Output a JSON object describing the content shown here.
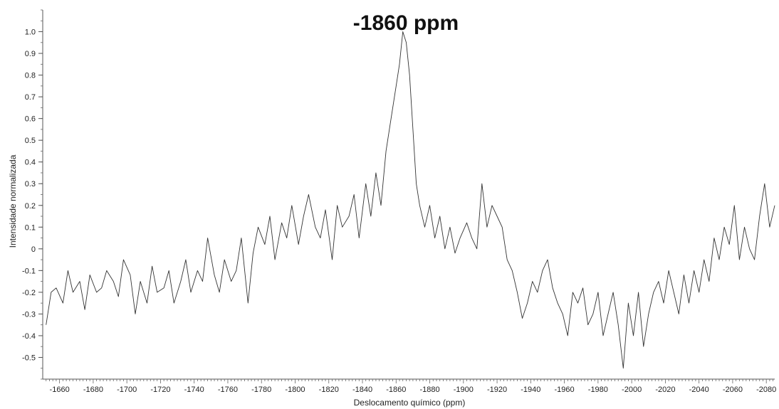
{
  "chart_data": {
    "type": "line",
    "title": "-1860 ppm",
    "xlabel": "Deslocamento químico (ppm)",
    "ylabel": "Intensidade normalizada",
    "xlim": [
      -1650,
      -2085
    ],
    "ylim": [
      -0.6,
      1.1
    ],
    "x_reversed_direction": true,
    "grid": false,
    "x_ticks": [
      -1660,
      -1680,
      -1700,
      -1720,
      -1740,
      -1760,
      -1780,
      -1800,
      -1820,
      -1840,
      -1860,
      -1880,
      -1900,
      -1920,
      -1940,
      -1960,
      -1980,
      -2000,
      -2020,
      -2040,
      -2060,
      -2080
    ],
    "y_ticks": [
      -0.5,
      -0.4,
      -0.3,
      -0.2,
      -0.1,
      0,
      0.1,
      0.2,
      0.3,
      0.4,
      0.5,
      0.6,
      0.7,
      0.8,
      0.9,
      1.0
    ],
    "y_tick_labels": [
      "-0.5",
      "-0.4",
      "-0.3",
      "-0.2",
      "-0.1",
      "0",
      "0.1",
      "0.2",
      "0.3",
      "0.4",
      "0.5",
      "0.6",
      "0.7",
      "0.8",
      "0.9",
      "1.0"
    ],
    "series": [
      {
        "color": "#333333",
        "x": [
          -1652,
          -1655,
          -1658,
          -1662,
          -1665,
          -1668,
          -1672,
          -1675,
          -1678,
          -1682,
          -1685,
          -1688,
          -1692,
          -1695,
          -1698,
          -1702,
          -1705,
          -1708,
          -1712,
          -1715,
          -1718,
          -1722,
          -1725,
          -1728,
          -1732,
          -1735,
          -1738,
          -1742,
          -1745,
          -1748,
          -1752,
          -1755,
          -1758,
          -1762,
          -1765,
          -1768,
          -1772,
          -1775,
          -1778,
          -1782,
          -1785,
          -1788,
          -1792,
          -1795,
          -1798,
          -1802,
          -1805,
          -1808,
          -1812,
          -1815,
          -1818,
          -1822,
          -1825,
          -1828,
          -1832,
          -1835,
          -1838,
          -1842,
          -1845,
          -1848,
          -1851,
          -1854,
          -1857,
          -1860,
          -1862,
          -1864,
          -1866,
          -1868,
          -1870,
          -1872,
          -1874,
          -1877,
          -1880,
          -1883,
          -1886,
          -1889,
          -1892,
          -1895,
          -1898,
          -1902,
          -1905,
          -1908,
          -1911,
          -1914,
          -1917,
          -1920,
          -1923,
          -1926,
          -1929,
          -1932,
          -1935,
          -1938,
          -1941,
          -1944,
          -1947,
          -1950,
          -1953,
          -1956,
          -1959,
          -1962,
          -1965,
          -1968,
          -1971,
          -1974,
          -1977,
          -1980,
          -1983,
          -1986,
          -1989,
          -1992,
          -1995,
          -1998,
          -2001,
          -2004,
          -2007,
          -2010,
          -2013,
          -2016,
          -2019,
          -2022,
          -2025,
          -2028,
          -2031,
          -2034,
          -2037,
          -2040,
          -2043,
          -2046,
          -2049,
          -2052,
          -2055,
          -2058,
          -2061,
          -2064,
          -2067,
          -2070,
          -2073,
          -2076,
          -2079,
          -2082,
          -2085
        ],
        "y": [
          -0.35,
          -0.2,
          -0.18,
          -0.25,
          -0.1,
          -0.2,
          -0.15,
          -0.28,
          -0.12,
          -0.2,
          -0.18,
          -0.1,
          -0.15,
          -0.22,
          -0.05,
          -0.12,
          -0.3,
          -0.15,
          -0.25,
          -0.08,
          -0.2,
          -0.18,
          -0.1,
          -0.25,
          -0.15,
          -0.05,
          -0.2,
          -0.1,
          -0.15,
          0.05,
          -0.12,
          -0.2,
          -0.05,
          -0.15,
          -0.1,
          0.05,
          -0.25,
          -0.02,
          0.1,
          0.02,
          0.15,
          -0.05,
          0.12,
          0.05,
          0.2,
          0.02,
          0.15,
          0.25,
          0.1,
          0.05,
          0.18,
          -0.05,
          0.2,
          0.1,
          0.15,
          0.25,
          0.05,
          0.3,
          0.15,
          0.35,
          0.2,
          0.45,
          0.6,
          0.75,
          0.85,
          1.0,
          0.95,
          0.8,
          0.55,
          0.3,
          0.2,
          0.1,
          0.2,
          0.05,
          0.15,
          0.0,
          0.1,
          -0.02,
          0.05,
          0.12,
          0.05,
          0.0,
          0.3,
          0.1,
          0.2,
          0.15,
          0.1,
          -0.05,
          -0.1,
          -0.2,
          -0.32,
          -0.25,
          -0.15,
          -0.2,
          -0.1,
          -0.05,
          -0.18,
          -0.25,
          -0.3,
          -0.4,
          -0.2,
          -0.25,
          -0.18,
          -0.35,
          -0.3,
          -0.2,
          -0.4,
          -0.3,
          -0.2,
          -0.35,
          -0.55,
          -0.25,
          -0.4,
          -0.2,
          -0.45,
          -0.3,
          -0.2,
          -0.15,
          -0.25,
          -0.1,
          -0.2,
          -0.3,
          -0.12,
          -0.25,
          -0.1,
          -0.2,
          -0.05,
          -0.15,
          0.05,
          -0.05,
          0.1,
          0.02,
          0.2,
          -0.05,
          0.1,
          0.0,
          -0.05,
          0.15,
          0.3,
          0.1,
          0.2
        ]
      }
    ]
  }
}
